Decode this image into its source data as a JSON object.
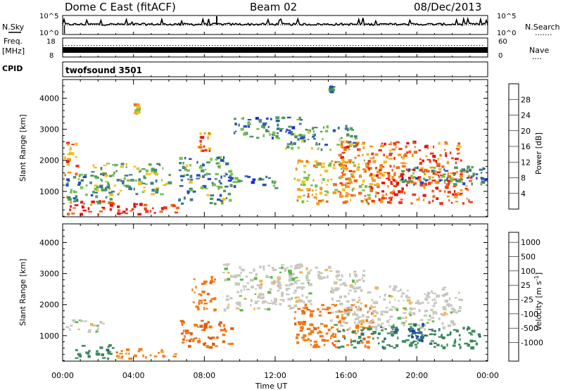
{
  "header": {
    "radar_name": "Dome C East (fitACF)",
    "beam": "Beam 02",
    "date": "08/Dec/2013"
  },
  "noise_panel": {
    "left_label": "N.Sky",
    "left_tick_top": "10^5",
    "left_tick_bottom": "10^0",
    "right_label": "N.Search",
    "right_dots": ".......",
    "right_tick_top": "10^5",
    "right_tick_bottom": "10^0"
  },
  "freq_panel": {
    "left_label_line1": "Freq.",
    "left_label_line2": "[MHz]",
    "left_tick_top": "18",
    "left_tick_bottom": "8",
    "right_label": "Nave",
    "right_dots": "....",
    "right_tick_top": "60",
    "right_tick_bottom": "0"
  },
  "cpid_panel": {
    "label": "CPID",
    "program": "twofsound 3501"
  },
  "colorbars": {
    "power": {
      "title": "Power [dB]",
      "labels": [
        "4",
        "8",
        "12",
        "16",
        "20",
        "24",
        "28"
      ],
      "colors": [
        "#1a24e6",
        "#2a4fb8",
        "#3f7a8c",
        "#4f9a5c",
        "#78c24a",
        "#f2c21a",
        "#f59a1a",
        "#f26a1a",
        "#f03a14",
        "#e6100e"
      ]
    },
    "velocity": {
      "title": "Velocity [m s-1]",
      "title_main": "Velocity [m s",
      "title_sup": "-1",
      "title_end": "]",
      "labels": [
        "1000",
        "500",
        "100",
        "25",
        "-25",
        "-100",
        "-500",
        "-1000"
      ],
      "colors": [
        "#1f3fb8",
        "#2e6a78",
        "#3e8a5e",
        "#5fb84a",
        "#c8c8c0",
        "#f2b64a",
        "#f27a12",
        "#e65a10",
        "#e6100e"
      ]
    }
  },
  "colors": {
    "background": "#ffffff",
    "axis": "#000000",
    "ground_scatter": "#c8c8c0"
  },
  "chart_data": [
    {
      "type": "heatmap",
      "name": "power",
      "xlabel": "",
      "ylabel": "Slant Range [km]",
      "xlim": [
        "00:00",
        "00:00"
      ],
      "ylim": [
        180,
        4600
      ],
      "x_ticks": [
        "00:00",
        "04:00",
        "08:00",
        "12:00",
        "16:00",
        "20:00",
        "00:00"
      ],
      "y_ticks": [
        1000,
        2000,
        3000,
        4000
      ],
      "colorbar": "Power [dB]",
      "scatter_regions_description_omitted": true,
      "regions": [
        {
          "t": [
            0.2,
            3.6
          ],
          "r": [
            250,
            700
          ],
          "v": 26
        },
        {
          "t": [
            0.1,
            2.8
          ],
          "r": [
            600,
            1600
          ],
          "v": 10
        },
        {
          "t": [
            0.0,
            0.8
          ],
          "r": [
            1500,
            2600
          ],
          "v": 22
        },
        {
          "t": [
            1.6,
            6.0
          ],
          "r": [
            900,
            1900
          ],
          "v": 12
        },
        {
          "t": [
            3.0,
            6.5
          ],
          "r": [
            250,
            600
          ],
          "v": 28
        },
        {
          "t": [
            6.5,
            9.5
          ],
          "r": [
            600,
            2100
          ],
          "v": 10
        },
        {
          "t": [
            8.5,
            12.0
          ],
          "r": [
            1100,
            1500
          ],
          "v": 8
        },
        {
          "t": [
            9.5,
            13.5
          ],
          "r": [
            2700,
            3400
          ],
          "v": 8
        },
        {
          "t": [
            12.5,
            16.5
          ],
          "r": [
            2300,
            3100
          ],
          "v": 10
        },
        {
          "t": [
            13.0,
            17.5
          ],
          "r": [
            600,
            2000
          ],
          "v": 18
        },
        {
          "t": [
            15.5,
            22.5
          ],
          "r": [
            1200,
            2600
          ],
          "v": 22
        },
        {
          "t": [
            17.0,
            23.0
          ],
          "r": [
            600,
            1700
          ],
          "v": 24
        },
        {
          "t": [
            19.0,
            24.0
          ],
          "r": [
            1200,
            1800
          ],
          "v": 8
        },
        {
          "t": [
            7.6,
            8.3
          ],
          "r": [
            2300,
            2900
          ],
          "v": 22
        },
        {
          "t": [
            4.0,
            4.2
          ],
          "r": [
            3500,
            3800
          ],
          "v": 18
        },
        {
          "t": [
            15.0,
            15.2
          ],
          "r": [
            4200,
            4400
          ],
          "v": 10
        }
      ]
    },
    {
      "type": "heatmap",
      "name": "velocity",
      "xlabel": "Time UT",
      "ylabel": "Slant Range [km]",
      "xlim": [
        "00:00",
        "00:00"
      ],
      "ylim": [
        180,
        4600
      ],
      "x_ticks": [
        "00:00",
        "04:00",
        "08:00",
        "12:00",
        "16:00",
        "20:00",
        "00:00"
      ],
      "y_ticks": [
        1000,
        2000,
        3000,
        4000
      ],
      "colorbar": "Velocity [m s-1]",
      "regions": [
        {
          "t": [
            0.2,
            2.8
          ],
          "r": [
            250,
            700
          ],
          "v": 200
        },
        {
          "t": [
            0.1,
            2.5
          ],
          "r": [
            1100,
            1500
          ],
          "v": 0
        },
        {
          "t": [
            3.0,
            6.5
          ],
          "r": [
            250,
            600
          ],
          "v": -80
        },
        {
          "t": [
            6.5,
            9.5
          ],
          "r": [
            600,
            1500
          ],
          "v": -300
        },
        {
          "t": [
            7.2,
            8.6
          ],
          "r": [
            1800,
            2900
          ],
          "v": -200
        },
        {
          "t": [
            9.0,
            14.0
          ],
          "r": [
            1800,
            3300
          ],
          "v": 0
        },
        {
          "t": [
            12.0,
            17.0
          ],
          "r": [
            2600,
            3200
          ],
          "v": 0
        },
        {
          "t": [
            13.0,
            17.5
          ],
          "r": [
            600,
            2000
          ],
          "v": -200
        },
        {
          "t": [
            15.0,
            22.5
          ],
          "r": [
            1200,
            2600
          ],
          "v": 0
        },
        {
          "t": [
            15.5,
            23.5
          ],
          "r": [
            600,
            1300
          ],
          "v": 200
        },
        {
          "t": [
            19.5,
            20.3
          ],
          "r": [
            800,
            1400
          ],
          "v": 900
        }
      ]
    }
  ]
}
